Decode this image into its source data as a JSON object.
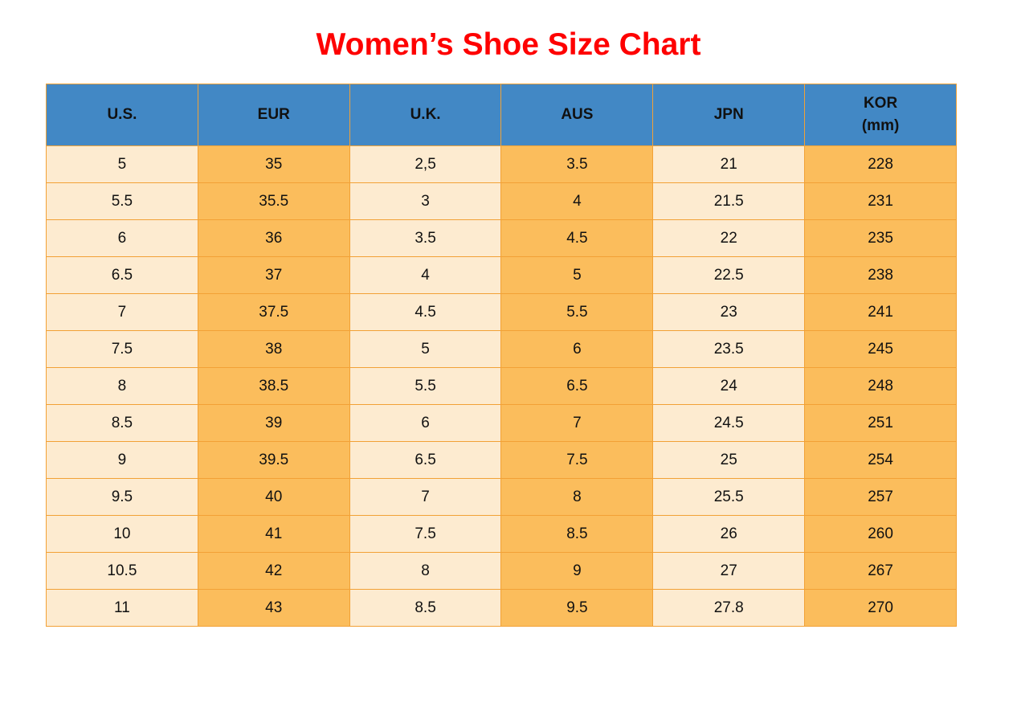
{
  "title": "Women’s Shoe Size Chart",
  "colors": {
    "title_red": "#FE0000",
    "header_blue": "#4288C5",
    "cell_orange": "#FBBD5C",
    "cell_cream": "#FDEBD0",
    "grid_orange": "#F2A136",
    "text_dark": "#111111"
  },
  "table": {
    "columns": [
      "U.S.",
      "EUR",
      "U.K.",
      "AUS",
      "JPN",
      "KOR\n(mm)"
    ],
    "rows": [
      [
        "5",
        "35",
        "2,5",
        "3.5",
        "21",
        "228"
      ],
      [
        "5.5",
        "35.5",
        "3",
        "4",
        "21.5",
        "231"
      ],
      [
        "6",
        "36",
        "3.5",
        "4.5",
        "22",
        "235"
      ],
      [
        "6.5",
        "37",
        "4",
        "5",
        "22.5",
        "238"
      ],
      [
        "7",
        "37.5",
        "4.5",
        "5.5",
        "23",
        "241"
      ],
      [
        "7.5",
        "38",
        "5",
        "6",
        "23.5",
        "245"
      ],
      [
        "8",
        "38.5",
        "5.5",
        "6.5",
        "24",
        "248"
      ],
      [
        "8.5",
        "39",
        "6",
        "7",
        "24.5",
        "251"
      ],
      [
        "9",
        "39.5",
        "6.5",
        "7.5",
        "25",
        "254"
      ],
      [
        "9.5",
        "40",
        "7",
        "8",
        "25.5",
        "257"
      ],
      [
        "10",
        "41",
        "7.5",
        "8.5",
        "26",
        "260"
      ],
      [
        "10.5",
        "42",
        "8",
        "9",
        "27",
        "267"
      ],
      [
        "11",
        "43",
        "8.5",
        "9.5",
        "27.8",
        "270"
      ]
    ]
  },
  "chart_data": {
    "type": "table",
    "title": "Women’s Shoe Size Chart",
    "columns": [
      "U.S.",
      "EUR",
      "U.K.",
      "AUS",
      "JPN",
      "KOR (mm)"
    ],
    "rows": [
      [
        "5",
        "35",
        "2,5",
        "3.5",
        "21",
        "228"
      ],
      [
        "5.5",
        "35.5",
        "3",
        "4",
        "21.5",
        "231"
      ],
      [
        "6",
        "36",
        "3.5",
        "4.5",
        "22",
        "235"
      ],
      [
        "6.5",
        "37",
        "4",
        "5",
        "22.5",
        "238"
      ],
      [
        "7",
        "37.5",
        "4.5",
        "5.5",
        "23",
        "241"
      ],
      [
        "7.5",
        "38",
        "5",
        "6",
        "23.5",
        "245"
      ],
      [
        "8",
        "38.5",
        "5.5",
        "6.5",
        "24",
        "248"
      ],
      [
        "8.5",
        "39",
        "6",
        "7",
        "24.5",
        "251"
      ],
      [
        "9",
        "39.5",
        "6.5",
        "7.5",
        "25",
        "254"
      ],
      [
        "9.5",
        "40",
        "7",
        "8",
        "25.5",
        "257"
      ],
      [
        "10",
        "41",
        "7.5",
        "8.5",
        "26",
        "260"
      ],
      [
        "10.5",
        "42",
        "8",
        "9",
        "27",
        "267"
      ],
      [
        "11",
        "43",
        "8.5",
        "9.5",
        "27.8",
        "270"
      ]
    ],
    "layout": {
      "header_fill": "#4288C5",
      "column_fill_alternating": [
        "#FDEBD0",
        "#FBBD5C"
      ],
      "grid_color": "#F2A136",
      "title_color": "#FE0000"
    }
  }
}
